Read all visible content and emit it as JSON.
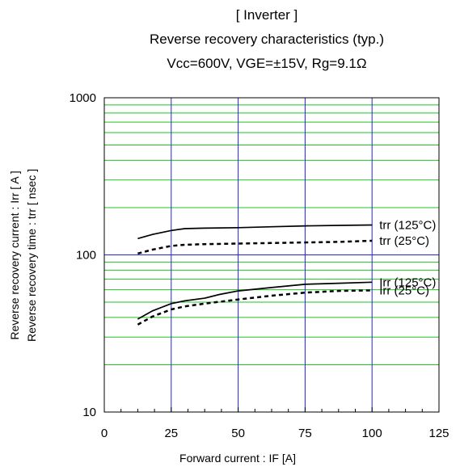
{
  "chart_data": {
    "type": "line",
    "title_lines": [
      "[ Inverter ]",
      "Reverse recovery characteristics  (typ.)",
      "Vcc=600V, VGE=±15V, Rg=9.1Ω"
    ],
    "xlabel": "Forward current : IF [A]",
    "ylabel_lines": [
      "Reverse recovery current  :  Irr  [ A ]",
      "Reverse recovery time  :  trr  [ nsec ]"
    ],
    "xlim": [
      0,
      125
    ],
    "ylim": [
      10,
      1000
    ],
    "y_scale": "log",
    "x_ticks": [
      "0",
      "25",
      "50",
      "75",
      "100",
      "125"
    ],
    "y_ticks": [
      "10",
      "100",
      "1000"
    ],
    "grid": true,
    "series": [
      {
        "name": "trr (125°C)",
        "style": "solid",
        "x": [
          12.5,
          18,
          25,
          30,
          37.5,
          50,
          62.5,
          75,
          87.5,
          100
        ],
        "y": [
          127,
          135,
          143,
          147,
          148,
          149,
          151,
          153,
          154,
          155
        ]
      },
      {
        "name": "trr (25°C)",
        "style": "dashed",
        "x": [
          12.5,
          18,
          25,
          30,
          37.5,
          50,
          62.5,
          75,
          87.5,
          100
        ],
        "y": [
          102,
          108,
          114,
          116,
          117,
          118,
          119,
          120,
          121,
          123
        ]
      },
      {
        "name": "Irr (125°C)",
        "style": "solid",
        "x": [
          12.5,
          18,
          25,
          30,
          37.5,
          43,
          50,
          62.5,
          75,
          87.5,
          100
        ],
        "y": [
          39,
          44,
          49,
          51,
          53,
          56,
          59,
          62,
          65,
          66,
          67
        ]
      },
      {
        "name": "Irr (25°C)",
        "style": "dashed",
        "x": [
          12.5,
          18,
          25,
          30,
          37.5,
          50,
          62.5,
          75,
          87.5,
          100
        ],
        "y": [
          36,
          40.5,
          45,
          47,
          49,
          52,
          55,
          57.5,
          59,
          59.5
        ]
      }
    ]
  }
}
